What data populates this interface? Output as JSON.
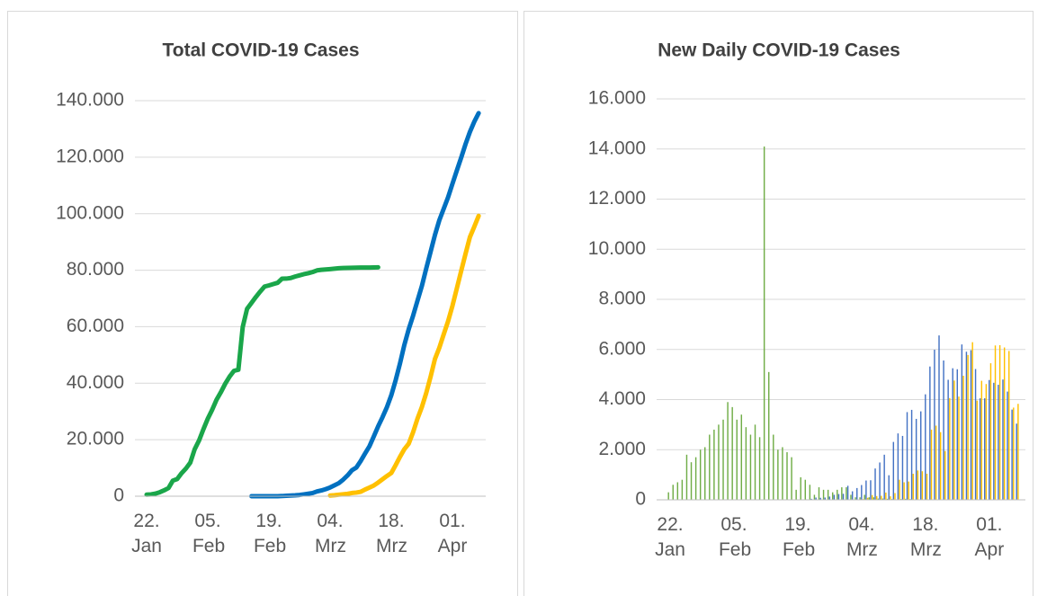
{
  "chart_data": [
    {
      "type": "line",
      "title": "Total COVID-19 Cases",
      "categories": [
        "22. Jan",
        null,
        null,
        null,
        null,
        null,
        null,
        null,
        null,
        null,
        null,
        null,
        null,
        null,
        "05. Feb",
        null,
        null,
        null,
        null,
        null,
        null,
        null,
        null,
        null,
        null,
        null,
        null,
        null,
        "19. Feb",
        null,
        null,
        null,
        null,
        null,
        null,
        null,
        null,
        null,
        null,
        null,
        null,
        null,
        "04. Mrz",
        null,
        null,
        null,
        null,
        null,
        null,
        null,
        null,
        null,
        null,
        null,
        null,
        null,
        "18. Mrz",
        null,
        null,
        null,
        null,
        null,
        null,
        null,
        null,
        null,
        null,
        null,
        null,
        null,
        "01. Apr",
        null,
        null,
        null,
        null,
        null,
        null
      ],
      "ylim": [
        0,
        140000
      ],
      "yticks": [
        0,
        {
          "value": 20000,
          "label": "20.000"
        },
        {
          "value": 40000,
          "label": "40.000"
        },
        {
          "value": 60000,
          "label": "60.000"
        },
        {
          "value": 80000,
          "label": "80.000"
        },
        {
          "value": 100000,
          "label": "100.000"
        },
        {
          "value": 120000,
          "label": "120.000"
        },
        {
          "value": 140000,
          "label": "140.000"
        }
      ],
      "grid": true,
      "series": [
        {
          "color": "#1aa64a",
          "values": [
            548,
            643,
            920,
            1406,
            2075,
            2877,
            5509,
            6087,
            8141,
            9802,
            11891,
            16630,
            19716,
            23707,
            27440,
            30587,
            34110,
            36814,
            39829,
            42354,
            44386,
            44759,
            59895,
            66358,
            68413,
            70513,
            72434,
            74211,
            74619,
            75077,
            75550,
            77001,
            77022,
            77241,
            77754,
            78166,
            78600,
            78928,
            79356,
            79932,
            80136,
            80261,
            80386,
            80537,
            80690,
            80770,
            80823,
            80860,
            80887,
            80921,
            80932,
            80945,
            80977,
            81003,
            null,
            null,
            null,
            null,
            null,
            null,
            null,
            null,
            null,
            null,
            null,
            null,
            null,
            null,
            null,
            null,
            null,
            null,
            null,
            null,
            null,
            null,
            null
          ]
        },
        {
          "color": "#0070c0",
          "values": [
            null,
            null,
            null,
            null,
            null,
            null,
            null,
            null,
            null,
            null,
            null,
            null,
            null,
            null,
            null,
            null,
            null,
            null,
            null,
            null,
            null,
            null,
            null,
            null,
            3,
            3,
            3,
            3,
            3,
            3,
            20,
            62,
            155,
            229,
            322,
            453,
            655,
            888,
            1128,
            1694,
            2036,
            2502,
            3089,
            3858,
            4636,
            5883,
            7375,
            9172,
            10149,
            12462,
            15113,
            17660,
            21157,
            24747,
            27980,
            31506,
            35713,
            41035,
            47021,
            53578,
            59138,
            63927,
            69176,
            74386,
            80589,
            86498,
            92472,
            97689,
            101739,
            105792,
            110574,
            115242,
            119827,
            124632,
            128948,
            132547,
            135586
          ]
        },
        {
          "color": "#ffc000",
          "values": [
            null,
            null,
            null,
            null,
            null,
            null,
            null,
            null,
            null,
            null,
            null,
            null,
            null,
            null,
            null,
            null,
            null,
            null,
            null,
            null,
            null,
            null,
            null,
            null,
            null,
            null,
            null,
            null,
            null,
            null,
            null,
            null,
            null,
            null,
            null,
            null,
            null,
            null,
            null,
            null,
            null,
            null,
            240,
            349,
            534,
            684,
            847,
            1139,
            1296,
            1567,
            2369,
            3062,
            3795,
            4838,
            6012,
            7156,
            8198,
            10999,
            13957,
            16662,
            18610,
            22672,
            27436,
            31554,
            36508,
            42288,
            48582,
            52547,
            57298,
            61913,
            67366,
            73522,
            79696,
            85778,
            91714,
            95391,
            99225
          ]
        }
      ]
    },
    {
      "type": "bar",
      "title": "New Daily COVID-19 Cases",
      "categories": [
        "22. Jan",
        null,
        null,
        null,
        null,
        null,
        null,
        null,
        null,
        null,
        null,
        null,
        null,
        null,
        "05. Feb",
        null,
        null,
        null,
        null,
        null,
        null,
        null,
        null,
        null,
        null,
        null,
        null,
        null,
        "19. Feb",
        null,
        null,
        null,
        null,
        null,
        null,
        null,
        null,
        null,
        null,
        null,
        null,
        null,
        "04. Mrz",
        null,
        null,
        null,
        null,
        null,
        null,
        null,
        null,
        null,
        null,
        null,
        null,
        null,
        "18. Mrz",
        null,
        null,
        null,
        null,
        null,
        null,
        null,
        null,
        null,
        null,
        null,
        null,
        null,
        "01. Apr",
        null,
        null,
        null,
        null,
        null,
        null
      ],
      "ylim": [
        0,
        16000
      ],
      "yticks": [
        0,
        {
          "value": 2000,
          "label": "2.000"
        },
        {
          "value": 4000,
          "label": "4.000"
        },
        {
          "value": 6000,
          "label": "6.000"
        },
        {
          "value": 8000,
          "label": "8.000"
        },
        {
          "value": 10000,
          "label": "10.000"
        },
        {
          "value": 12000,
          "label": "12.000"
        },
        {
          "value": 14000,
          "label": "14.000"
        },
        {
          "value": 16000,
          "label": "16.000"
        }
      ],
      "grid": true,
      "series": [
        {
          "color": "#70ad47",
          "values": [
            300,
            600,
            700,
            800,
            1800,
            1500,
            1700,
            2000,
            2100,
            2600,
            2800,
            3000,
            3200,
            3900,
            3700,
            3200,
            3400,
            2900,
            2600,
            3000,
            2500,
            14100,
            5100,
            2600,
            2000,
            2100,
            1900,
            1700,
            400,
            900,
            800,
            600,
            200,
            500,
            400,
            400,
            300,
            400,
            500,
            500,
            200,
            100,
            100,
            200,
            100,
            100,
            50,
            50,
            40,
            30,
            20,
            30,
            40,
            30,
            null,
            null,
            null,
            null,
            null,
            null,
            null,
            null,
            null,
            null,
            null,
            null,
            null,
            null,
            null,
            null,
            null,
            null,
            null,
            null,
            null,
            null,
            null
          ]
        },
        {
          "color": "#4472c4",
          "values": [
            null,
            null,
            null,
            null,
            null,
            null,
            null,
            null,
            null,
            null,
            null,
            null,
            null,
            null,
            null,
            null,
            null,
            null,
            null,
            null,
            null,
            null,
            null,
            null,
            0,
            0,
            0,
            0,
            0,
            0,
            20,
            40,
            90,
            80,
            90,
            130,
            200,
            230,
            240,
            560,
            340,
            470,
            590,
            770,
            780,
            1250,
            1490,
            1800,
            980,
            2310,
            2650,
            2550,
            3500,
            3590,
            3230,
            3530,
            4210,
            5320,
            5990,
            6560,
            5560,
            4790,
            5250,
            5210,
            6200,
            5910,
            5970,
            5220,
            4050,
            4050,
            4780,
            4670,
            4590,
            4800,
            4320,
            3600,
            3040
          ]
        },
        {
          "color": "#ffc000",
          "values": [
            null,
            null,
            null,
            null,
            null,
            null,
            null,
            null,
            null,
            null,
            null,
            null,
            null,
            null,
            null,
            null,
            null,
            null,
            null,
            null,
            null,
            null,
            null,
            null,
            null,
            null,
            null,
            null,
            null,
            null,
            null,
            null,
            null,
            null,
            null,
            null,
            null,
            null,
            null,
            null,
            null,
            null,
            30,
            80,
            190,
            150,
            160,
            290,
            140,
            270,
            800,
            700,
            730,
            1040,
            1170,
            1140,
            1040,
            2800,
            2960,
            2700,
            1950,
            4060,
            4760,
            4120,
            4950,
            5780,
            6290,
            3960,
            4750,
            4620,
            5450,
            6160,
            6170,
            6080,
            5940,
            3680,
            3830
          ]
        }
      ]
    }
  ]
}
